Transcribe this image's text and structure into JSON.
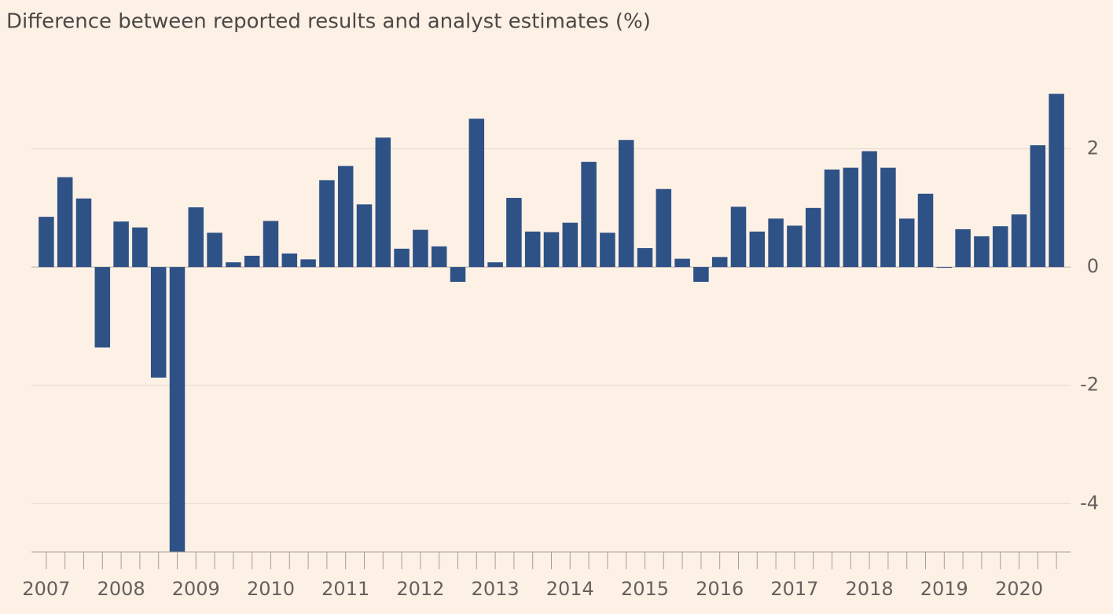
{
  "chart_data": {
    "type": "bar",
    "title": "Difference between reported results and analyst estimates (%)",
    "categories": [
      "2007",
      null,
      null,
      null,
      "2008",
      null,
      null,
      null,
      "2009",
      null,
      null,
      null,
      "2010",
      null,
      null,
      null,
      "2011",
      null,
      null,
      null,
      "2012",
      null,
      null,
      null,
      "2013",
      null,
      null,
      null,
      "2014",
      null,
      null,
      null,
      "2015",
      null,
      null,
      null,
      "2016",
      null,
      null,
      null,
      "2017",
      null,
      null,
      null,
      "2018",
      null,
      null,
      null,
      "2019",
      null,
      null,
      null,
      "2020",
      null,
      null
    ],
    "values": [
      0.85,
      1.52,
      1.16,
      -1.36,
      0.77,
      0.67,
      -1.87,
      -4.82,
      1.01,
      0.58,
      0.08,
      0.19,
      0.78,
      0.23,
      0.13,
      1.47,
      1.71,
      1.06,
      2.19,
      0.31,
      0.63,
      0.35,
      -0.25,
      2.51,
      0.08,
      1.17,
      0.6,
      0.59,
      0.75,
      1.78,
      0.58,
      2.15,
      0.32,
      1.32,
      0.14,
      -0.25,
      0.17,
      1.02,
      0.6,
      0.82,
      0.7,
      1.0,
      1.65,
      1.68,
      1.96,
      1.68,
      0.82,
      1.24,
      -0.01,
      0.64,
      0.52,
      0.69,
      0.89,
      2.06,
      2.93
    ],
    "color": "#2e5186",
    "ylim": [
      -4.82,
      3.2
    ],
    "yticks": [
      -4,
      -2,
      0,
      2
    ],
    "grid": true
  }
}
